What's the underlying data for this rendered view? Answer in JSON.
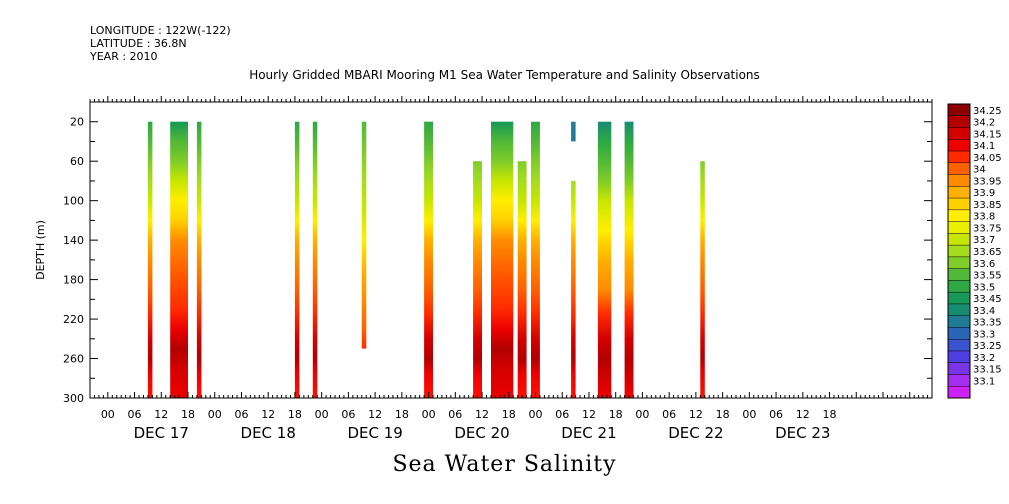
{
  "header": {
    "longitude": "LONGITUDE : 122W(-122)",
    "latitude": "LATITUDE : 36.8N",
    "year": "YEAR : 2010"
  },
  "chart_data": {
    "type": "heatmap",
    "title": "Hourly Gridded MBARI Mooring M1 Sea Water Temperature and Salinity Observations",
    "bottom_title": "Sea Water Salinity",
    "ylabel": "DEPTH (m)",
    "y_ticks": [
      20,
      60,
      100,
      140,
      180,
      220,
      260,
      300
    ],
    "ylim": [
      0,
      300
    ],
    "y_reversed": true,
    "x_tick_labels": [
      "00",
      "06",
      "12",
      "18",
      "00",
      "06",
      "12",
      "18",
      "00",
      "06",
      "12",
      "18",
      "00",
      "06",
      "12",
      "18",
      "00",
      "06",
      "12",
      "18",
      "00",
      "06",
      "12",
      "18",
      "00",
      "06",
      "12",
      "18"
    ],
    "x_day_labels": [
      "DEC 17",
      "DEC 18",
      "DEC 19",
      "DEC 20",
      "DEC 21",
      "DEC 22",
      "DEC 23"
    ],
    "x_range_hours": [
      -4,
      185
    ],
    "colorbar": {
      "levels": [
        "34.25",
        "34.2",
        "34.15",
        "34.1",
        "34.05",
        "34",
        "33.95",
        "33.9",
        "33.85",
        "33.8",
        "33.75",
        "33.7",
        "33.65",
        "33.6",
        "33.55",
        "33.5",
        "33.45",
        "33.4",
        "33.35",
        "33.3",
        "33.25",
        "33.2",
        "33.15",
        "33.1"
      ],
      "colors": [
        "#8b0000",
        "#b30000",
        "#d40000",
        "#ee0000",
        "#ff2a00",
        "#ff6000",
        "#ff8c00",
        "#ffb000",
        "#ffd000",
        "#ffee00",
        "#eaf000",
        "#c8e600",
        "#a6dc1e",
        "#7fcc2a",
        "#52b838",
        "#2ea845",
        "#179856",
        "#178c72",
        "#1f7c94",
        "#2a66b4",
        "#3a52cc",
        "#4f3ee0",
        "#7a34e8",
        "#a62ef0",
        "#cc22f5"
      ]
    },
    "columns": [
      {
        "start": 9,
        "end": 10,
        "top": 20,
        "bottom": 300,
        "profile": "a"
      },
      {
        "start": 14,
        "end": 18,
        "top": 20,
        "bottom": 300,
        "profile": "b"
      },
      {
        "start": 20,
        "end": 21,
        "top": 20,
        "bottom": 300,
        "profile": "a"
      },
      {
        "start": 42,
        "end": 43,
        "top": 20,
        "bottom": 300,
        "profile": "a"
      },
      {
        "start": 46,
        "end": 47,
        "top": 20,
        "bottom": 300,
        "profile": "a"
      },
      {
        "start": 57,
        "end": 58,
        "top": 20,
        "bottom": 250,
        "profile": "c"
      },
      {
        "start": 71,
        "end": 73,
        "top": 20,
        "bottom": 300,
        "profile": "a"
      },
      {
        "start": 82,
        "end": 84,
        "top": 60,
        "bottom": 300,
        "profile": "a"
      },
      {
        "start": 86,
        "end": 91,
        "top": 20,
        "bottom": 300,
        "profile": "b"
      },
      {
        "start": 92,
        "end": 94,
        "top": 60,
        "bottom": 300,
        "profile": "a"
      },
      {
        "start": 95,
        "end": 97,
        "top": 20,
        "bottom": 300,
        "profile": "a"
      },
      {
        "start": 104,
        "end": 105,
        "top": 20,
        "bottom": 40,
        "profile": "d"
      },
      {
        "start": 104,
        "end": 105,
        "top": 80,
        "bottom": 300,
        "profile": "a"
      },
      {
        "start": 110,
        "end": 113,
        "top": 20,
        "bottom": 300,
        "profile": "e"
      },
      {
        "start": 116,
        "end": 118,
        "top": 20,
        "bottom": 300,
        "profile": "e"
      },
      {
        "start": 133,
        "end": 134,
        "top": 60,
        "bottom": 300,
        "profile": "a"
      }
    ],
    "profiles": {
      "a": [
        [
          20,
          "#2ea845"
        ],
        [
          40,
          "#52b838"
        ],
        [
          60,
          "#7fcc2a"
        ],
        [
          80,
          "#a6dc1e"
        ],
        [
          100,
          "#c8e600"
        ],
        [
          120,
          "#ffee00"
        ],
        [
          140,
          "#ffb000"
        ],
        [
          160,
          "#ff8c00"
        ],
        [
          190,
          "#ff6000"
        ],
        [
          215,
          "#ff2a00"
        ],
        [
          240,
          "#d40000"
        ],
        [
          260,
          "#b30000"
        ],
        [
          275,
          "#ee0000"
        ],
        [
          300,
          "#ff1000"
        ]
      ],
      "b": [
        [
          20,
          "#179856"
        ],
        [
          40,
          "#52b838"
        ],
        [
          60,
          "#7fcc2a"
        ],
        [
          80,
          "#c8e600"
        ],
        [
          100,
          "#ffee00"
        ],
        [
          120,
          "#ffd000"
        ],
        [
          140,
          "#ff8c00"
        ],
        [
          170,
          "#ff6000"
        ],
        [
          210,
          "#ff2a00"
        ],
        [
          230,
          "#ee0000"
        ],
        [
          250,
          "#b30000"
        ],
        [
          270,
          "#d40000"
        ],
        [
          300,
          "#ee0000"
        ]
      ],
      "c": [
        [
          20,
          "#52b838"
        ],
        [
          50,
          "#7fcc2a"
        ],
        [
          80,
          "#a6dc1e"
        ],
        [
          110,
          "#c8e600"
        ],
        [
          140,
          "#ffee00"
        ],
        [
          170,
          "#ffb000"
        ],
        [
          200,
          "#ff8c00"
        ],
        [
          230,
          "#ff6000"
        ],
        [
          250,
          "#ff2a00"
        ]
      ],
      "d": [
        [
          20,
          "#1f7c94"
        ],
        [
          40,
          "#1f7c94"
        ]
      ],
      "e": [
        [
          20,
          "#178c72"
        ],
        [
          40,
          "#2ea845"
        ],
        [
          60,
          "#52b838"
        ],
        [
          80,
          "#7fcc2a"
        ],
        [
          100,
          "#c8e600"
        ],
        [
          130,
          "#ffee00"
        ],
        [
          160,
          "#ffb000"
        ],
        [
          190,
          "#ff8c00"
        ],
        [
          215,
          "#ff2a00"
        ],
        [
          240,
          "#d40000"
        ],
        [
          260,
          "#b30000"
        ],
        [
          280,
          "#d40000"
        ],
        [
          300,
          "#ee0000"
        ]
      ]
    }
  }
}
